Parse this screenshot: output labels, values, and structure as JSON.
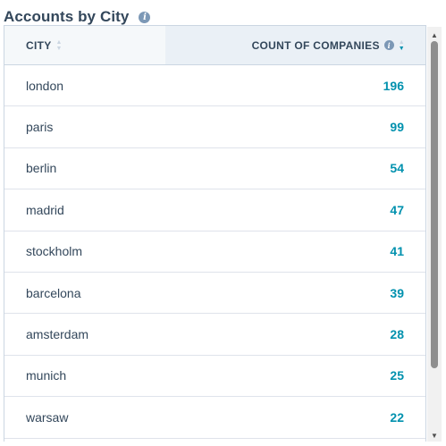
{
  "report": {
    "title": "Accounts by City",
    "info_icon": "info-icon"
  },
  "table": {
    "columns": {
      "city": "CITY",
      "count": "COUNT OF COMPANIES"
    },
    "sort": {
      "column": "count",
      "direction": "descending"
    },
    "rows": [
      {
        "city": "london",
        "count": "196"
      },
      {
        "city": "paris",
        "count": "99"
      },
      {
        "city": "berlin",
        "count": "54"
      },
      {
        "city": "madrid",
        "count": "47"
      },
      {
        "city": "stockholm",
        "count": "41"
      },
      {
        "city": "barcelona",
        "count": "39"
      },
      {
        "city": "amsterdam",
        "count": "28"
      },
      {
        "city": "munich",
        "count": "25"
      },
      {
        "city": "warsaw",
        "count": "22"
      }
    ]
  },
  "colors": {
    "text": "#33475b",
    "link": "#0091ae",
    "header_bg": "#f5f8fa",
    "sorted_header_bg": "#eaf0f6",
    "border": "#cbd6e2"
  }
}
